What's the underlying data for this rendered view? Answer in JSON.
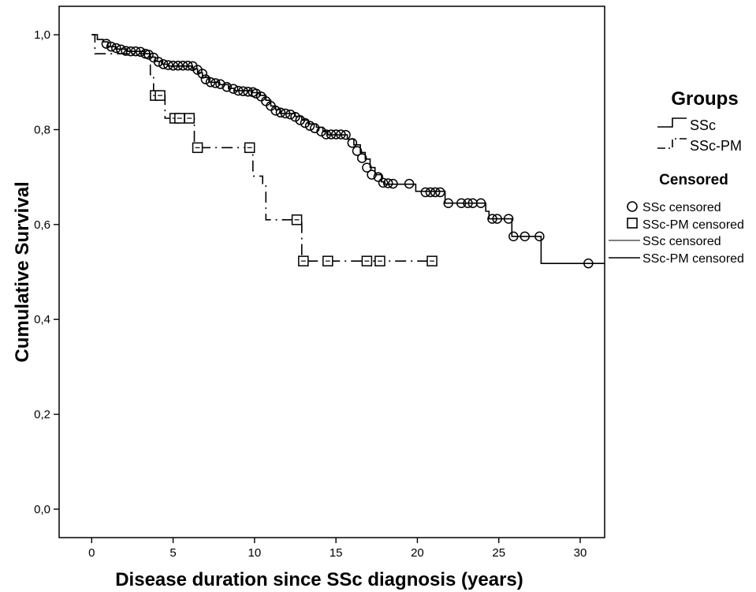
{
  "chart_data": {
    "type": "line",
    "subtype": "kaplan-meier",
    "title": "",
    "xlabel": "Disease duration since SSc diagnosis (years)",
    "ylabel": "Cumulative Survival",
    "xlim": [
      -2,
      31.5
    ],
    "ylim": [
      -0.06,
      1.06
    ],
    "x_ticks": [
      0,
      5,
      10,
      15,
      20,
      25,
      30
    ],
    "x_tick_labels": [
      "0",
      "5",
      "10",
      "15",
      "20",
      "25",
      "30"
    ],
    "y_ticks": [
      0.0,
      0.2,
      0.4,
      0.6,
      0.8,
      1.0
    ],
    "y_tick_labels": [
      "0,0",
      "0,2",
      "0,4",
      "0,6",
      "0,8",
      "1,0"
    ],
    "grid": false,
    "legend_placement": "right",
    "colors": {
      "line": "#000000",
      "background": "#ffffff"
    },
    "series": [
      {
        "name": "SSc",
        "line_style": "solid",
        "steps": [
          [
            0,
            1.0
          ],
          [
            0.35,
            0.99
          ],
          [
            0.7,
            0.985
          ],
          [
            1.0,
            0.975
          ],
          [
            1.5,
            0.97
          ],
          [
            2.2,
            0.965
          ],
          [
            3.2,
            0.96
          ],
          [
            3.6,
            0.953
          ],
          [
            3.9,
            0.944
          ],
          [
            4.3,
            0.938
          ],
          [
            4.7,
            0.934
          ],
          [
            6.2,
            0.928
          ],
          [
            6.5,
            0.92
          ],
          [
            6.8,
            0.91
          ],
          [
            7.2,
            0.9
          ],
          [
            7.8,
            0.895
          ],
          [
            8.4,
            0.887
          ],
          [
            8.8,
            0.882
          ],
          [
            9.8,
            0.878
          ],
          [
            10.3,
            0.872
          ],
          [
            10.7,
            0.862
          ],
          [
            11.0,
            0.85
          ],
          [
            11.3,
            0.842
          ],
          [
            11.6,
            0.834
          ],
          [
            12.5,
            0.828
          ],
          [
            12.9,
            0.82
          ],
          [
            13.3,
            0.812
          ],
          [
            13.8,
            0.805
          ],
          [
            14.2,
            0.796
          ],
          [
            14.5,
            0.789
          ],
          [
            15.0,
            0.789
          ],
          [
            15.7,
            0.78
          ],
          [
            16.1,
            0.768
          ],
          [
            16.5,
            0.752
          ],
          [
            16.8,
            0.738
          ],
          [
            17.1,
            0.72
          ],
          [
            17.4,
            0.705
          ],
          [
            17.8,
            0.69
          ],
          [
            18.0,
            0.685
          ],
          [
            19.9,
            0.67
          ],
          [
            21.7,
            0.645
          ],
          [
            24.2,
            0.628
          ],
          [
            24.4,
            0.612
          ],
          [
            25.8,
            0.575
          ],
          [
            27.6,
            0.518
          ],
          [
            31.5,
            0.518
          ]
        ],
        "censored": [
          [
            0.9,
            0.981
          ],
          [
            1.2,
            0.975
          ],
          [
            1.5,
            0.972
          ],
          [
            1.8,
            0.969
          ],
          [
            2.1,
            0.966
          ],
          [
            2.4,
            0.965
          ],
          [
            2.7,
            0.965
          ],
          [
            3.0,
            0.964
          ],
          [
            3.3,
            0.96
          ],
          [
            3.5,
            0.958
          ],
          [
            3.8,
            0.952
          ],
          [
            4.1,
            0.943
          ],
          [
            4.4,
            0.938
          ],
          [
            4.7,
            0.936
          ],
          [
            5.0,
            0.935
          ],
          [
            5.3,
            0.935
          ],
          [
            5.6,
            0.935
          ],
          [
            5.9,
            0.935
          ],
          [
            6.2,
            0.934
          ],
          [
            6.5,
            0.926
          ],
          [
            6.8,
            0.918
          ],
          [
            7.0,
            0.906
          ],
          [
            7.3,
            0.9
          ],
          [
            7.6,
            0.898
          ],
          [
            7.9,
            0.896
          ],
          [
            8.3,
            0.89
          ],
          [
            8.7,
            0.886
          ],
          [
            9.0,
            0.882
          ],
          [
            9.3,
            0.881
          ],
          [
            9.6,
            0.88
          ],
          [
            9.9,
            0.879
          ],
          [
            10.1,
            0.876
          ],
          [
            10.4,
            0.87
          ],
          [
            10.7,
            0.86
          ],
          [
            11.0,
            0.85
          ],
          [
            11.3,
            0.84
          ],
          [
            11.6,
            0.836
          ],
          [
            11.9,
            0.834
          ],
          [
            12.2,
            0.832
          ],
          [
            12.5,
            0.827
          ],
          [
            12.8,
            0.82
          ],
          [
            13.1,
            0.814
          ],
          [
            13.4,
            0.808
          ],
          [
            13.7,
            0.803
          ],
          [
            14.1,
            0.796
          ],
          [
            14.4,
            0.79
          ],
          [
            14.7,
            0.79
          ],
          [
            15.0,
            0.79
          ],
          [
            15.3,
            0.79
          ],
          [
            15.6,
            0.789
          ],
          [
            16.0,
            0.772
          ],
          [
            16.3,
            0.755
          ],
          [
            16.6,
            0.74
          ],
          [
            16.9,
            0.72
          ],
          [
            17.2,
            0.705
          ],
          [
            17.6,
            0.7
          ],
          [
            17.9,
            0.688
          ],
          [
            18.2,
            0.687
          ],
          [
            18.5,
            0.686
          ],
          [
            19.5,
            0.686
          ],
          [
            20.5,
            0.668
          ],
          [
            20.8,
            0.668
          ],
          [
            21.1,
            0.668
          ],
          [
            21.4,
            0.668
          ],
          [
            21.9,
            0.645
          ],
          [
            22.7,
            0.645
          ],
          [
            23.1,
            0.645
          ],
          [
            23.4,
            0.645
          ],
          [
            23.9,
            0.645
          ],
          [
            24.6,
            0.612
          ],
          [
            24.9,
            0.612
          ],
          [
            25.6,
            0.612
          ],
          [
            25.9,
            0.575
          ],
          [
            26.6,
            0.575
          ],
          [
            27.5,
            0.575
          ],
          [
            30.5,
            0.518
          ]
        ]
      },
      {
        "name": "SSc-PM",
        "line_style": "dash-dot",
        "steps": [
          [
            0,
            1.0
          ],
          [
            0.2,
            0.96
          ],
          [
            3.6,
            0.916
          ],
          [
            3.8,
            0.872
          ],
          [
            4.5,
            0.824
          ],
          [
            6.3,
            0.762
          ],
          [
            9.9,
            0.702
          ],
          [
            10.5,
            0.686
          ],
          [
            10.7,
            0.61
          ],
          [
            12.9,
            0.523
          ],
          [
            20.9,
            0.523
          ]
        ],
        "censored": [
          [
            3.9,
            0.872
          ],
          [
            4.2,
            0.872
          ],
          [
            5.1,
            0.824
          ],
          [
            5.4,
            0.824
          ],
          [
            6.0,
            0.824
          ],
          [
            6.5,
            0.762
          ],
          [
            9.7,
            0.762
          ],
          [
            12.6,
            0.61
          ],
          [
            13.0,
            0.523
          ],
          [
            14.5,
            0.523
          ],
          [
            16.9,
            0.523
          ],
          [
            17.7,
            0.523
          ],
          [
            20.9,
            0.523
          ]
        ]
      }
    ]
  },
  "legend": {
    "groups_heading": "Groups",
    "groups_items": [
      "SSc",
      "SSc-PM"
    ],
    "censored_heading": "Censored",
    "censored_items": [
      "SSc censored",
      "SSc-PM censored",
      "SSc censored",
      "SSc-PM censored"
    ]
  }
}
